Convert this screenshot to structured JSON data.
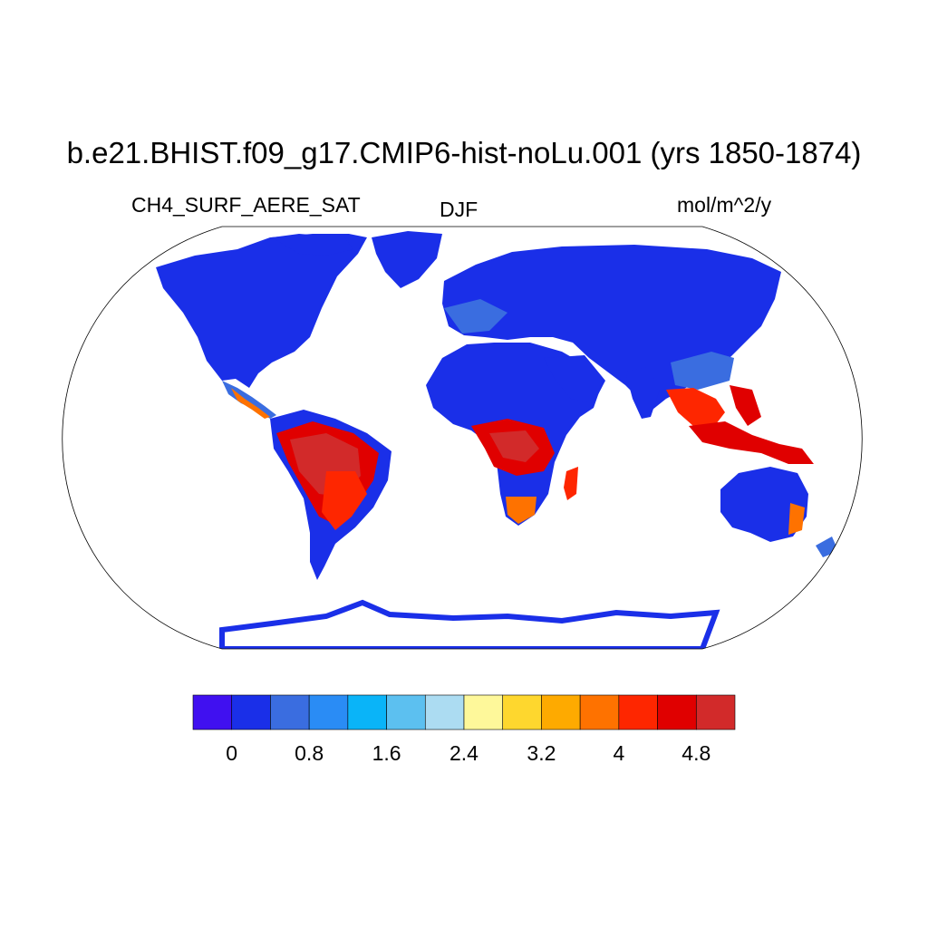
{
  "title": "b.e21.BHIST.f09_g17.CMIP6-hist-noLu.001 (yrs 1850-1874)",
  "variable": "CH4_SURF_AERE_SAT",
  "season": "DJF",
  "units": "mol/m^2/y",
  "colorbar": {
    "colors": [
      "#4010f0",
      "#1a2fe8",
      "#3a6de0",
      "#2a8cf5",
      "#0ab4f8",
      "#5cc0f0",
      "#acdcf2",
      "#fef89a",
      "#fed72e",
      "#feaa00",
      "#fe7200",
      "#fe2600",
      "#e00000",
      "#d22a2a"
    ],
    "tick_labels": [
      "0",
      "0.8",
      "1.6",
      "2.4",
      "3.2",
      "4",
      "4.8"
    ]
  }
}
